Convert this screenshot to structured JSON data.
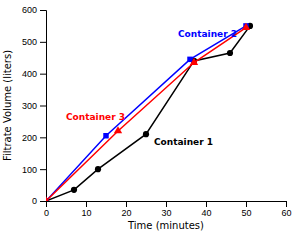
{
  "chart_data": {
    "type": "line",
    "xlabel": "Time (minutes)",
    "ylabel": "Filtrate Volume (liters)",
    "xlim": [
      0,
      60
    ],
    "ylim": [
      0,
      600
    ],
    "xticks": [
      0,
      10,
      20,
      30,
      40,
      50,
      60
    ],
    "yticks": [
      0,
      100,
      200,
      300,
      400,
      500,
      600
    ],
    "series": [
      {
        "color": "black",
        "marker": "circle",
        "x": [
          0,
          7,
          13,
          25,
          37,
          46,
          51
        ],
        "values": [
          0,
          35,
          100,
          210,
          440,
          465,
          550
        ]
      },
      {
        "color": "blue",
        "marker": "square",
        "x": [
          0,
          15,
          36,
          50
        ],
        "values": [
          0,
          205,
          445,
          550
        ]
      },
      {
        "color": "red",
        "marker": "triangle",
        "x": [
          0,
          18,
          37,
          50
        ],
        "values": [
          0,
          220,
          435,
          545
        ]
      }
    ],
    "annotations": [
      {
        "text": "Container 2",
        "x": 33,
        "y": 515,
        "color": "blue"
      },
      {
        "text": "Container 3",
        "x": 5,
        "y": 255,
        "color": "red"
      },
      {
        "text": "Container 1",
        "x": 27,
        "y": 175,
        "color": "black"
      }
    ]
  }
}
